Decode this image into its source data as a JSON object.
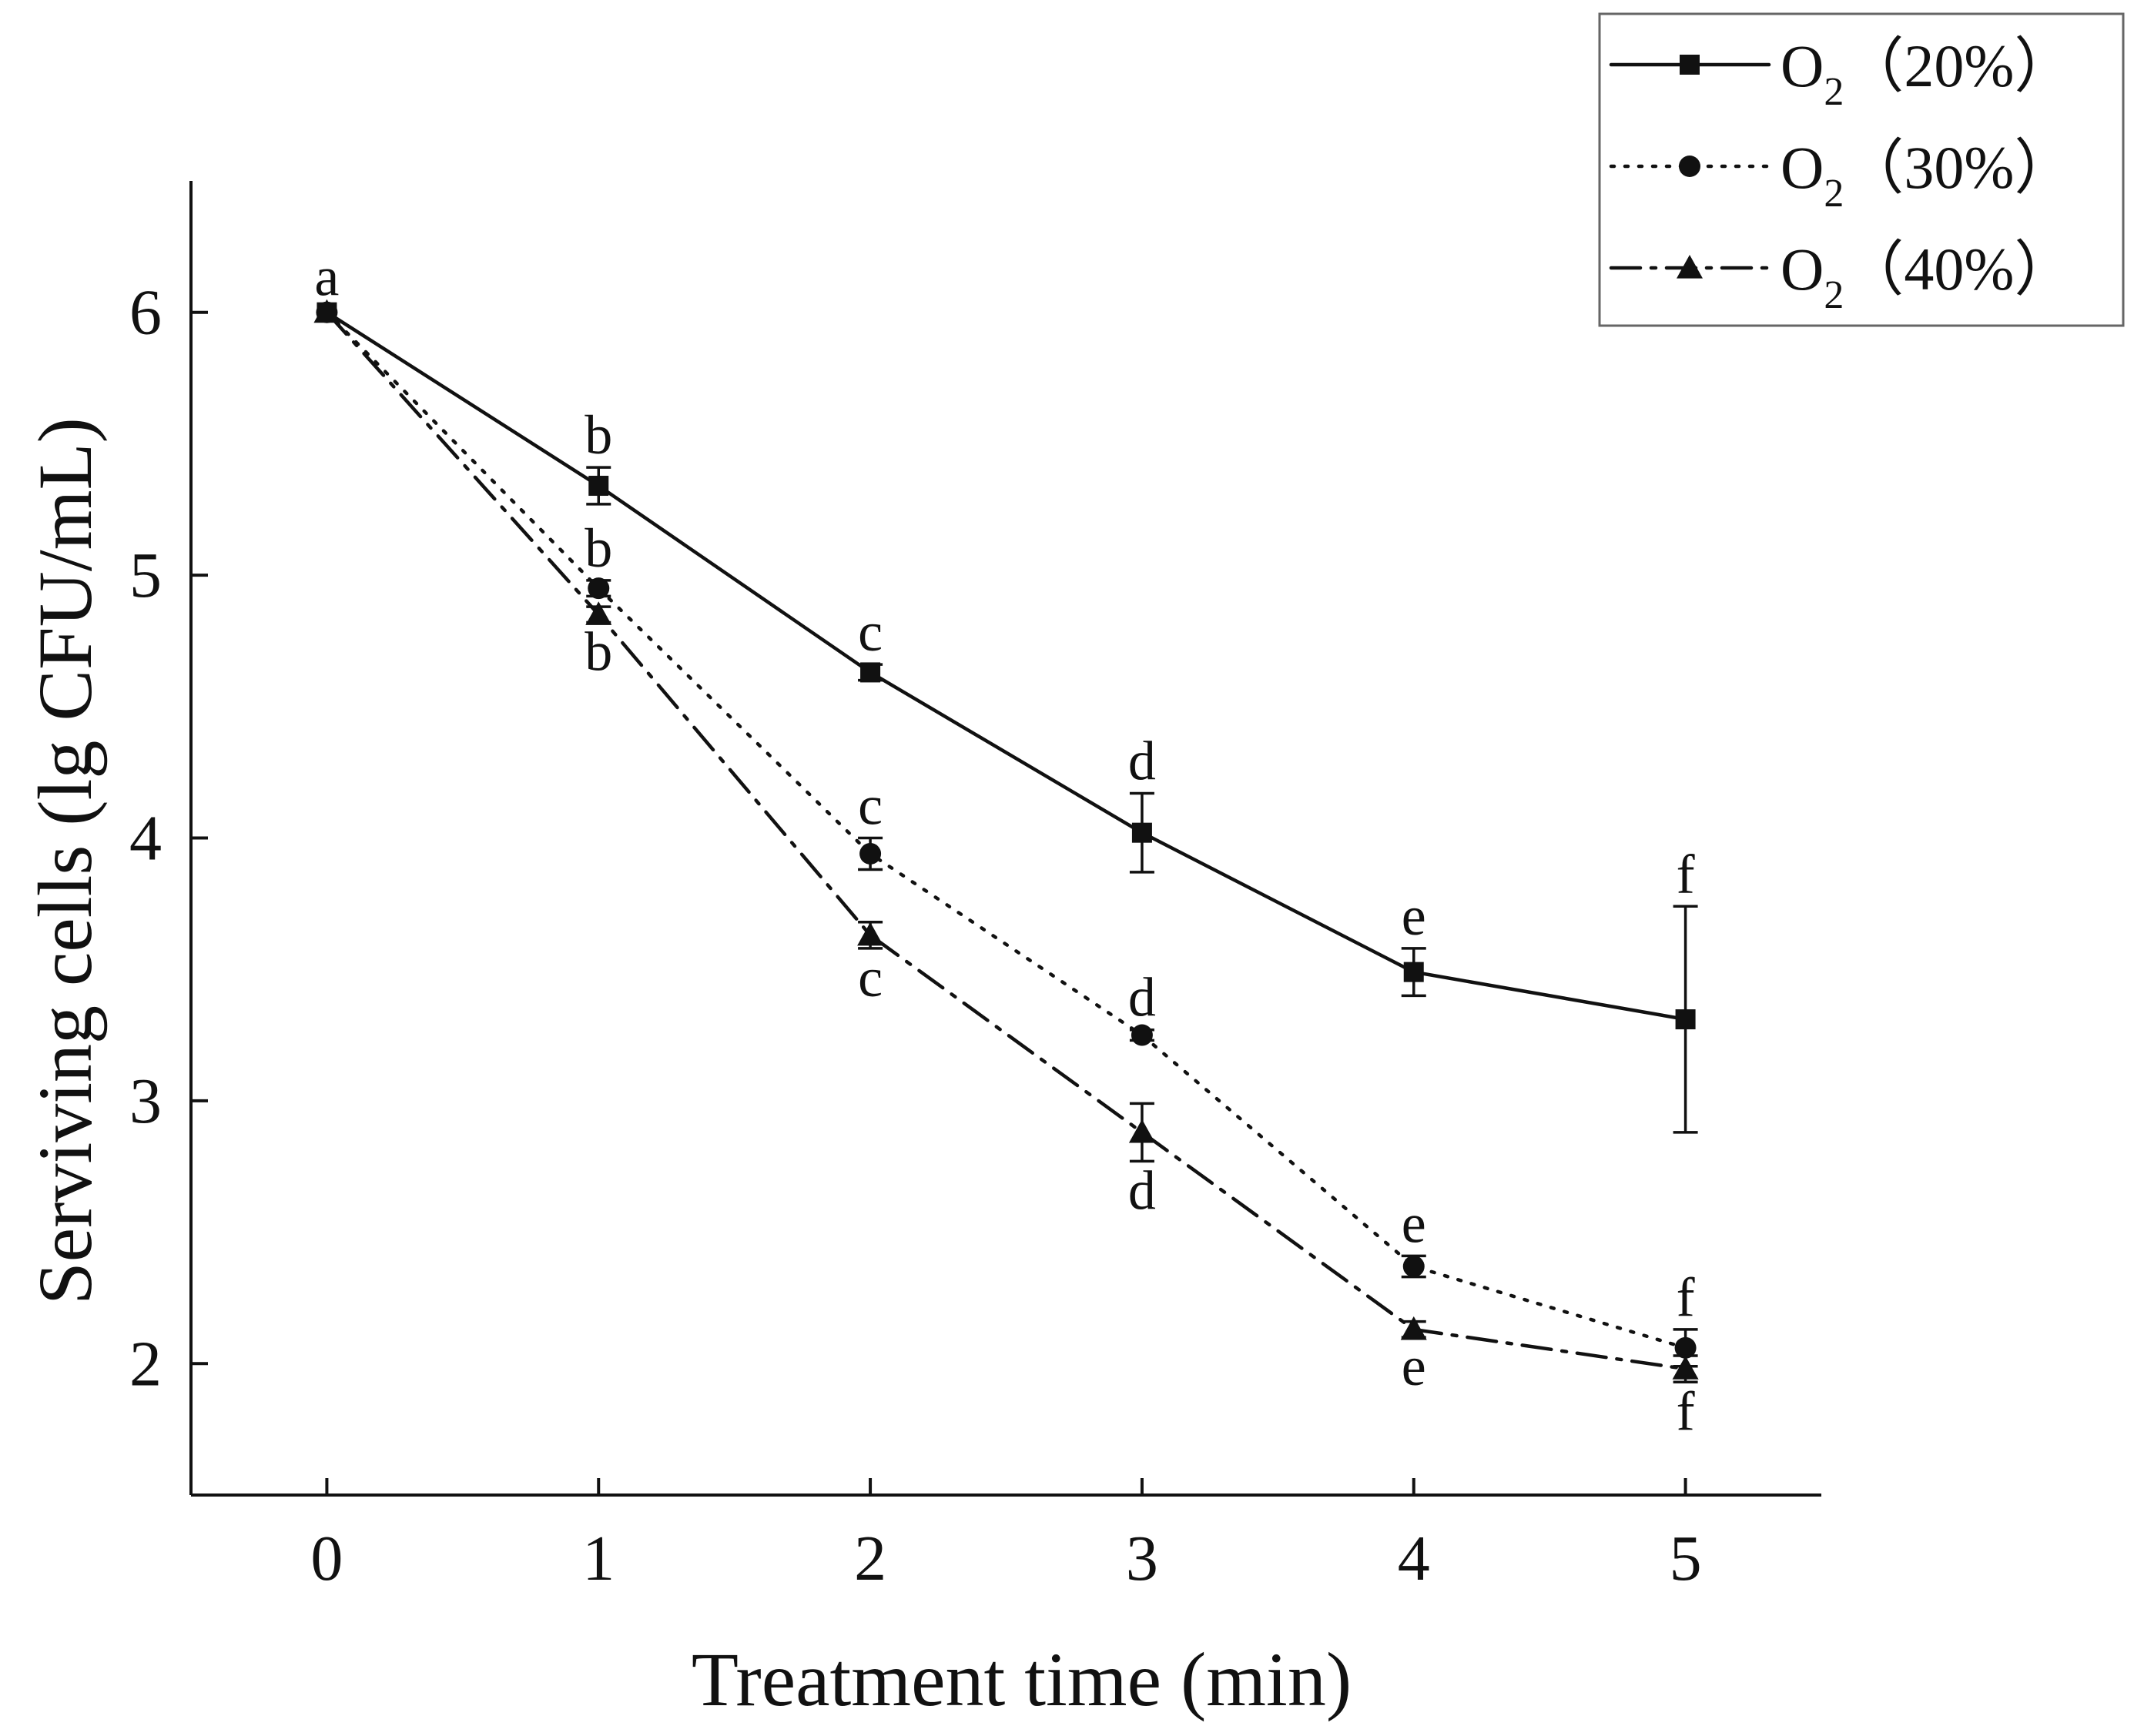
{
  "chart_data": {
    "type": "line",
    "title": "",
    "xlabel": "Treatment time (min)",
    "ylabel": "Serviving cells (lg CFU/mL)",
    "x": [
      0,
      1,
      2,
      3,
      4,
      5
    ],
    "xlim": [
      -0.5,
      5.5
    ],
    "ylim": [
      1.5,
      6.5
    ],
    "xticks": [
      0,
      1,
      2,
      3,
      4,
      5
    ],
    "yticks": [
      2,
      3,
      4,
      5,
      6
    ],
    "grid": false,
    "legend_position": "top-right",
    "series": [
      {
        "name": "O2（20%）",
        "label_main": "O",
        "label_sub": "2",
        "label_tail": "（20%）",
        "marker": "square",
        "line_style": "solid",
        "values": [
          6.0,
          5.34,
          4.63,
          4.02,
          3.49,
          3.31
        ],
        "errors": [
          0.0,
          0.07,
          0.03,
          0.15,
          0.09,
          0.43
        ],
        "letters": [
          "a",
          "b",
          "c",
          "d",
          "e",
          "f"
        ],
        "letter_side": [
          "above",
          "above",
          "above",
          "above",
          "above",
          "above"
        ]
      },
      {
        "name": "O2（30%）",
        "label_main": "O",
        "label_sub": "2",
        "label_tail": "（30%）",
        "marker": "circle",
        "line_style": "dotted",
        "values": [
          6.0,
          4.95,
          3.94,
          3.25,
          2.37,
          2.06
        ],
        "errors": [
          0.0,
          0.03,
          0.06,
          0.02,
          0.04,
          0.07
        ],
        "letters": [
          "",
          "b",
          "c",
          "d",
          "e",
          "f"
        ],
        "letter_side": [
          "above",
          "above",
          "above",
          "above",
          "above",
          "above"
        ]
      },
      {
        "name": "O2（40%）",
        "label_main": "O",
        "label_sub": "2",
        "label_tail": "（40%）",
        "marker": "triangle",
        "line_style": "dashdot",
        "values": [
          6.0,
          4.85,
          3.63,
          2.88,
          2.13,
          1.98
        ],
        "errors": [
          0.0,
          0.03,
          0.05,
          0.11,
          0.03,
          0.05
        ],
        "letters": [
          "",
          "b",
          "c",
          "d",
          "e",
          "f"
        ],
        "letter_side": [
          "below",
          "below",
          "below",
          "below",
          "below",
          "below"
        ]
      }
    ]
  }
}
